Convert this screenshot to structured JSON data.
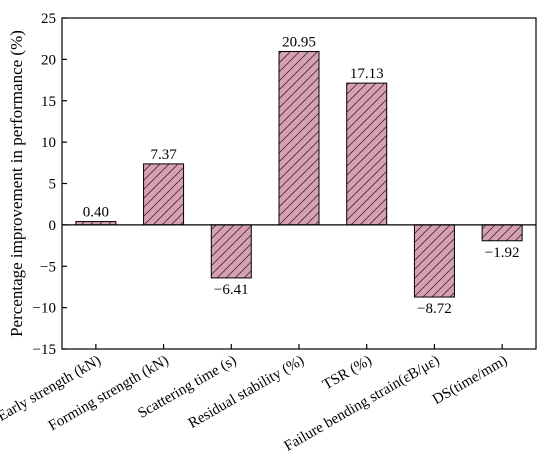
{
  "chart_data": {
    "type": "bar",
    "categories": [
      "Early strength (kN)",
      "Forming strength (kN)",
      "Scattering time (s)",
      "Residual stability (%)",
      "TSR (%)",
      "Failure bending strain(εB/με)",
      "DS(time/mm)"
    ],
    "values": [
      0.4,
      7.37,
      -6.41,
      20.95,
      17.13,
      -8.72,
      -1.92
    ],
    "data_labels": [
      "0.40",
      "7.37",
      "−6.41",
      "20.95",
      "17.13",
      "−8.72",
      "−1.92"
    ],
    "title": "",
    "xlabel": "",
    "ylabel": "Percentage improvement in performance (%)",
    "ylim": [
      -15,
      25
    ],
    "yticks": [
      -15,
      -10,
      -5,
      0,
      5,
      10,
      15,
      20,
      25
    ],
    "ytick_labels": [
      "−15",
      "−10",
      "−5",
      "0",
      "5",
      "10",
      "15",
      "20",
      "25"
    ],
    "grid": false,
    "legend": "none",
    "bar_color": "#d9a0b5",
    "hatch": "diagonal"
  }
}
